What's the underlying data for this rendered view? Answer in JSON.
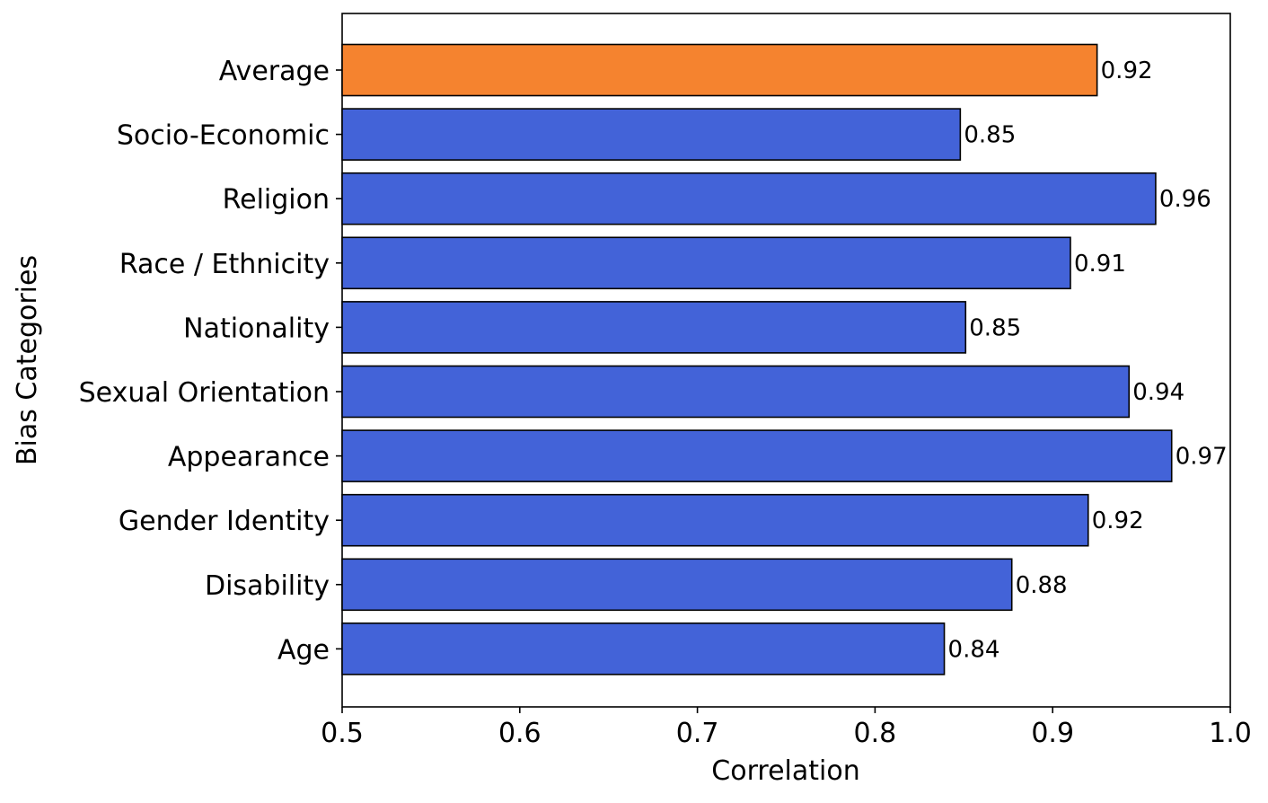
{
  "chart_data": {
    "type": "bar",
    "orientation": "horizontal",
    "title": "",
    "xlabel": "Correlation",
    "ylabel": "Bias Categories",
    "xlim": [
      0.5,
      1.0
    ],
    "xticks": [
      0.5,
      0.6,
      0.7,
      0.8,
      0.9,
      1.0
    ],
    "xtick_labels": [
      "0.5",
      "0.6",
      "0.7",
      "0.8",
      "0.9",
      "1.0"
    ],
    "grid": false,
    "categories": [
      "Average",
      "Socio-Economic",
      "Religion",
      "Race / Ethnicity",
      "Nationality",
      "Sexual Orientation",
      "Appearance",
      "Gender Identity",
      "Disability",
      "Age"
    ],
    "values": [
      0.925,
      0.848,
      0.958,
      0.91,
      0.851,
      0.943,
      0.967,
      0.92,
      0.877,
      0.839
    ],
    "data_labels": [
      "0.92",
      "0.85",
      "0.96",
      "0.91",
      "0.85",
      "0.94",
      "0.97",
      "0.92",
      "0.88",
      "0.84"
    ],
    "colors": [
      "#F5832F",
      "#4363D8",
      "#4363D8",
      "#4363D8",
      "#4363D8",
      "#4363D8",
      "#4363D8",
      "#4363D8",
      "#4363D8",
      "#4363D8"
    ]
  }
}
